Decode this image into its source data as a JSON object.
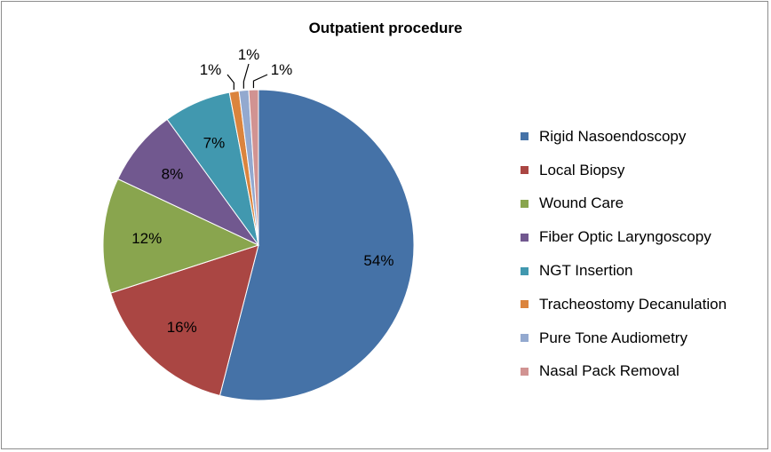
{
  "chart_data": {
    "type": "pie",
    "title": "Outpatient procedure",
    "labels": [
      "Rigid Nasoendoscopy",
      "Local Biopsy",
      "Wound Care",
      "Fiber Optic Laryngoscopy",
      "NGT Insertion",
      "Tracheostomy Decanulation",
      "Pure Tone Audiometry",
      "Nasal Pack Removal"
    ],
    "values": [
      54,
      16,
      12,
      8,
      7,
      1,
      1,
      1
    ],
    "data_labels": [
      "54%",
      "16%",
      "12%",
      "8%",
      "7%",
      "1%",
      "1%",
      "1%"
    ],
    "colors": [
      "#4572A7",
      "#AA4643",
      "#89A54E",
      "#71588F",
      "#4198AF",
      "#DB843D",
      "#93A9CF",
      "#D19392"
    ],
    "legend_position": "right"
  }
}
